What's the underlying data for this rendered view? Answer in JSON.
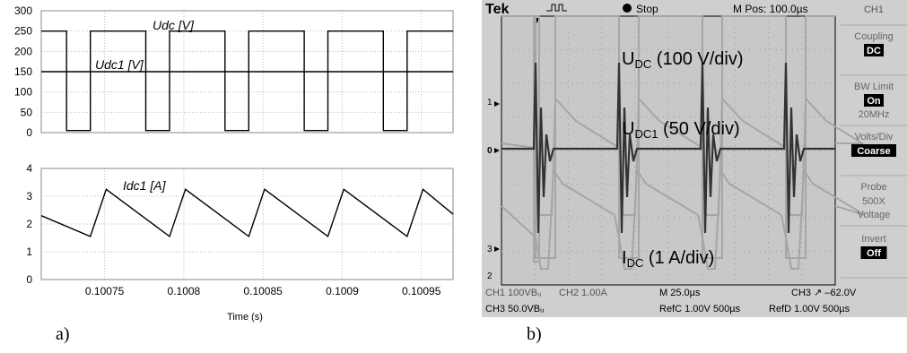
{
  "captions": {
    "a": "a)",
    "b": "b)"
  },
  "chart_data": [
    {
      "type": "line",
      "panel": "a-top",
      "ylim": [
        0,
        300
      ],
      "y_ticks": [
        "0",
        "50",
        "100",
        "150",
        "200",
        "250",
        "300"
      ],
      "xlim": [
        0.10071,
        0.10097
      ],
      "grid": true,
      "series": [
        {
          "name": "Udc [V]",
          "x": [
            0.10071,
            0.100726,
            0.100726,
            0.100741,
            0.100741,
            0.100776,
            0.100776,
            0.100791,
            0.100791,
            0.100826,
            0.100826,
            0.100841,
            0.100841,
            0.100876,
            0.100876,
            0.100891,
            0.100891,
            0.100926,
            0.100926,
            0.100941,
            0.100941,
            0.10097
          ],
          "y": [
            250,
            250,
            5,
            5,
            250,
            250,
            5,
            5,
            250,
            250,
            5,
            5,
            250,
            250,
            5,
            5,
            250,
            250,
            5,
            5,
            250,
            250
          ]
        },
        {
          "name": "Udc1 [V]",
          "x": [
            0.10071,
            0.10097
          ],
          "y": [
            150,
            150
          ]
        }
      ]
    },
    {
      "type": "line",
      "panel": "a-bottom",
      "ylim": [
        0,
        4
      ],
      "y_ticks": [
        "0",
        "1",
        "2",
        "3",
        "4"
      ],
      "xlim": [
        0.10071,
        0.10097
      ],
      "x_ticks": [
        {
          "value": 0.10075,
          "label": "0.10075"
        },
        {
          "value": 0.1008,
          "label": "0.1008"
        },
        {
          "value": 0.10085,
          "label": "0.10085"
        },
        {
          "value": 0.1009,
          "label": "0.1009"
        },
        {
          "value": 0.10095,
          "label": "0.10095"
        }
      ],
      "xlabel": "Time (s)",
      "grid": true,
      "series": [
        {
          "name": "Idc1 [A]",
          "x": [
            0.10071,
            0.100741,
            0.100751,
            0.100791,
            0.100801,
            0.100841,
            0.100851,
            0.100891,
            0.100901,
            0.100941,
            0.100951,
            0.10097
          ],
          "y": [
            2.3,
            1.55,
            3.25,
            1.55,
            3.25,
            1.55,
            3.25,
            1.55,
            3.25,
            1.55,
            3.25,
            2.35
          ]
        }
      ]
    }
  ],
  "scope": {
    "brand": "Tek",
    "trigger_state": "Stop",
    "mpos": "M Pos: 100.0µs",
    "channel": "CH1",
    "menu": [
      {
        "label": "Coupling",
        "value": "DC"
      },
      {
        "label": "BW Limit",
        "value": "On",
        "sub": "20MHz"
      },
      {
        "label": "Volts/Div",
        "value": "Coarse"
      },
      {
        "label": "Probe",
        "value": "",
        "sub": "500X",
        "sub2": "Voltage"
      },
      {
        "label": "Invert",
        "value": "Off"
      }
    ],
    "markers": {
      "m1": "1",
      "m0": "0",
      "m3": "3",
      "m2": "2"
    },
    "labels": {
      "udc_main": "U",
      "udc_sub": "DC",
      "udc_rest": " (100 V/div)",
      "udc1_main": "U",
      "udc1_sub": "DC1",
      "udc1_rest": " (50 V/div)",
      "idc_main": "I",
      "idc_sub": "DC",
      "idc_rest": " (1 A/div)"
    },
    "status": {
      "ch1": "CH1  100VBᵤ",
      "ch2": "CH2  1.00A",
      "mtime": "M 25.0µs",
      "ch3trig": "CH3  ↗  –62.0V",
      "ch3": "CH3  50.0VBᵤ",
      "refc": "RefC 1.00V 500µs",
      "refd": "RefD 1.00V 500µs"
    },
    "colors": {
      "bg": "#cfcfcf",
      "trace_light": "#a6a6a6",
      "trace_dark": "#333333"
    }
  }
}
